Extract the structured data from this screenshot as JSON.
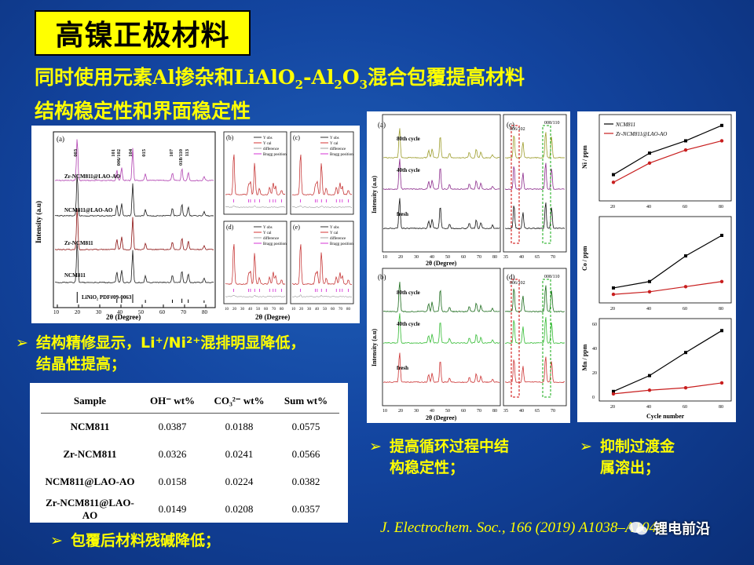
{
  "slide": {
    "title": "高镍正极材料",
    "subtitle_line1_a": "同时使用元素Al掺杂和LiAlO",
    "subtitle_line1_sub1": "2",
    "subtitle_line1_b": "-Al",
    "subtitle_line1_sub2": "2",
    "subtitle_line1_c": "O",
    "subtitle_line1_sub3": "3",
    "subtitle_line1_d": "混合包覆提高材料",
    "subtitle_line2": "结构稳定性和界面稳定性"
  },
  "bullets": {
    "arrow": "➢",
    "b1_line1": "结构精修显示，Li⁺/Ni²⁺混排明显降低，",
    "b1_line2": "结晶性提高；",
    "b2": "包覆后材料残碱降低；",
    "b3_line1": "提高循环过程中结",
    "b3_line2": "构稳定性；",
    "b4_line1": "抑制过渡金",
    "b4_line2": "属溶出；"
  },
  "citation": "J. Electrochem. Soc., 166 (2019) A1038–A1048.",
  "watermark": "锂电前沿",
  "xrd_panel": {
    "a_label": "(a)",
    "ylabel": "Intensity (a.u)",
    "xlabel": "2θ (Degree)",
    "x_ticks": [
      "10",
      "20",
      "30",
      "40",
      "50",
      "60",
      "70",
      "80"
    ],
    "samples": [
      "Zr-NCM811@LAO-AO",
      "NCM811@LAO-AO",
      "Zr-NCM811",
      "NCM811",
      "LiNiO₂ PDF#09-0063"
    ],
    "peaks": [
      "003",
      "101",
      "006/102",
      "104",
      "015",
      "107",
      "018/110",
      "113"
    ],
    "subplots": [
      {
        "label": "(b)"
      },
      {
        "label": "(c)"
      },
      {
        "label": "(d)"
      },
      {
        "label": "(e)"
      }
    ],
    "legend": [
      "Y obs",
      "Y cal",
      "difference",
      "Bragg position"
    ],
    "sub_xlabel": "2θ (Degree)",
    "sub_ticks": [
      "10",
      "20",
      "30",
      "40",
      "50",
      "60",
      "70",
      "80"
    ]
  },
  "table": {
    "headers": [
      "Sample",
      "OH⁻ wt%",
      "CO₃²⁻ wt%",
      "Sum wt%"
    ],
    "rows": [
      [
        "NCM811",
        "0.0387",
        "0.0188",
        "0.0575"
      ],
      [
        "Zr-NCM811",
        "0.0326",
        "0.0241",
        "0.0566"
      ],
      [
        "NCM811@LAO-AO",
        "0.0158",
        "0.0224",
        "0.0382"
      ],
      [
        "Zr-NCM811@LAO-AO",
        "0.0149",
        "0.0208",
        "0.0357"
      ]
    ]
  },
  "cycle_xrd": {
    "a_label": "(a)",
    "b_label": "(b)",
    "c_label": "(c)",
    "d_label": "(d)",
    "curves": [
      "80th cycle",
      "40th cycle",
      "fresh"
    ],
    "ylabel": "Intensity (a.u)",
    "xlabel": "2θ (Degree)",
    "x_ticks": [
      "10",
      "20",
      "30",
      "40",
      "50",
      "60",
      "70",
      "80"
    ],
    "zoom_ticks": [
      "35",
      "40",
      "65",
      "70"
    ],
    "zoom_labels": [
      "006/102",
      "008/110"
    ],
    "colors_top": [
      "#9c9c2a",
      "#8b2a8b",
      "#111111"
    ],
    "colors_bottom": [
      "#1a6a1a",
      "#33bb33",
      "#cc3333"
    ]
  },
  "chart_data": [
    {
      "type": "line",
      "ylabel": "Ni / ppm",
      "x": [
        20,
        40,
        60,
        80
      ],
      "series": [
        {
          "name": "NCM811",
          "values": [
            28,
            56,
            72,
            92
          ]
        },
        {
          "name": "Zr-NCM811@LAO-AO",
          "values": [
            18,
            43,
            60,
            72
          ]
        }
      ],
      "legend": "top-left"
    },
    {
      "type": "line",
      "ylabel": "Co / ppm",
      "x": [
        20,
        40,
        60,
        80
      ],
      "series": [
        {
          "name": "NCM811",
          "values": [
            8,
            13,
            33,
            49
          ]
        },
        {
          "name": "Zr-NCM811@LAO-AO",
          "values": [
            3,
            5,
            9,
            13
          ]
        }
      ]
    },
    {
      "type": "line",
      "ylabel": "Mn / ppm",
      "xlabel": "Cycle number",
      "x": [
        20,
        40,
        60,
        80
      ],
      "x_ticks": [
        "20",
        "40",
        "60",
        "80"
      ],
      "y_ticks": [
        "0",
        "20",
        "40",
        "60"
      ],
      "series": [
        {
          "name": "NCM811",
          "values": [
            4,
            17,
            36,
            54
          ]
        },
        {
          "name": "Zr-NCM811@LAO-AO",
          "values": [
            2,
            5,
            7,
            11
          ]
        }
      ]
    }
  ],
  "colors": {
    "accent_yellow": "#ffff00",
    "ncm811": "#000000",
    "coated": "#c81e1e"
  }
}
